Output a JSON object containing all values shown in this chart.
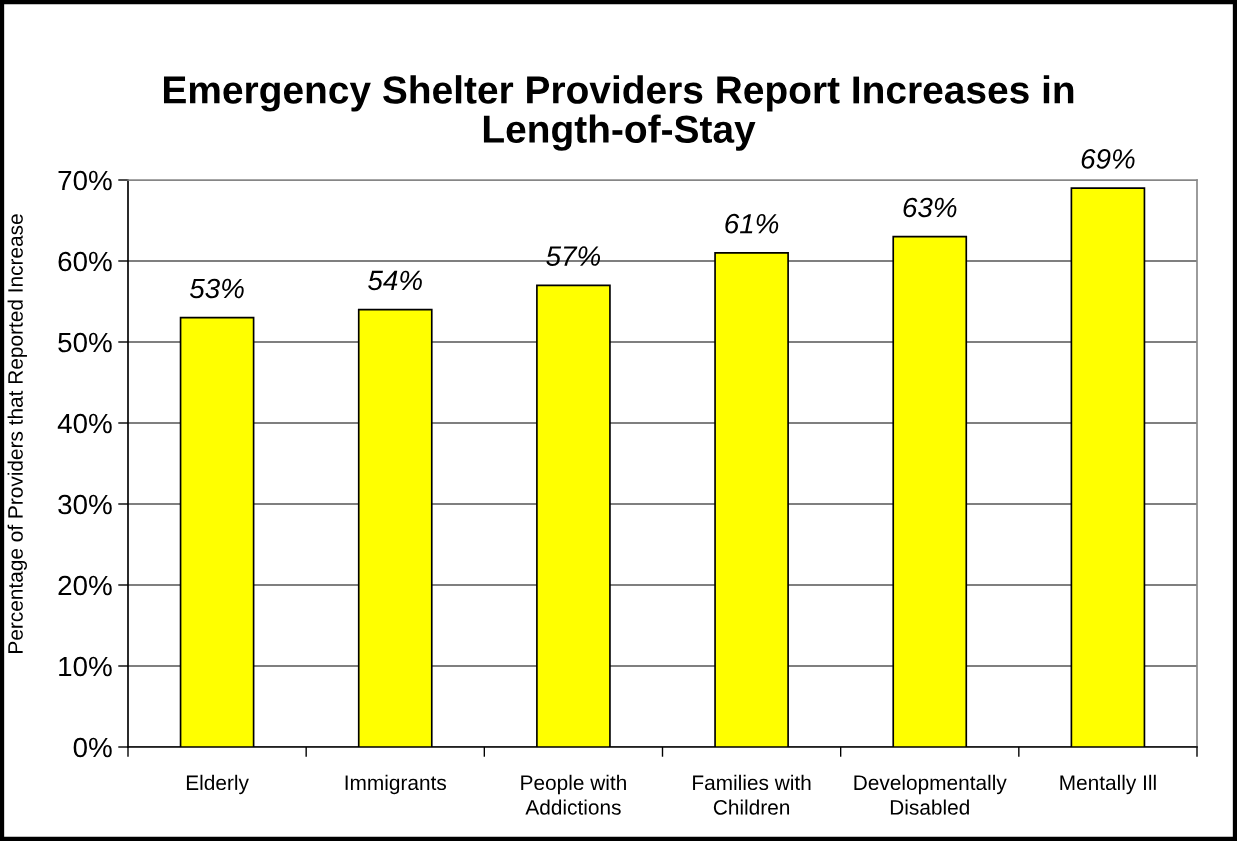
{
  "chart_data": {
    "type": "bar",
    "title": "Emergency Shelter Providers Report Increases in Length-of-Stay",
    "ylabel": "Percentage of Providers that Reported Increase",
    "categories": [
      "Elderly",
      "Immigrants",
      "People with Addictions",
      "Families with Children",
      "Developmentally Disabled",
      "Mentally Ill"
    ],
    "values": [
      53,
      54,
      57,
      61,
      63,
      69
    ],
    "color": "#ffff00",
    "value_labels": [
      "53%",
      "54%",
      "57%",
      "61%",
      "63%",
      "69%"
    ],
    "ylim": [
      0,
      70
    ],
    "yticks": [
      {
        "value": 0,
        "label": "0%"
      },
      {
        "value": 10,
        "label": "10%"
      },
      {
        "value": 20,
        "label": "20%"
      },
      {
        "value": 30,
        "label": "30%"
      },
      {
        "value": 40,
        "label": "40%"
      },
      {
        "value": 50,
        "label": "50%"
      },
      {
        "value": 60,
        "label": "60%"
      },
      {
        "value": 70,
        "label": "70%"
      }
    ],
    "grid": "y"
  }
}
